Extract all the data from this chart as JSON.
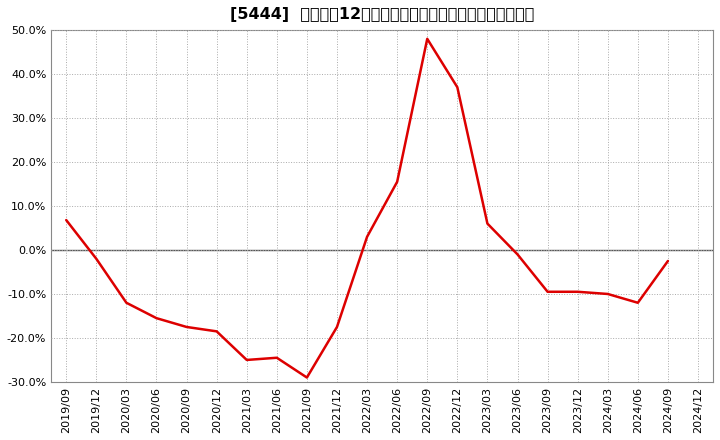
{
  "title": "[5444]  売上高の12か月移動合計の対前年同期増減率の推移",
  "line_color": "#dd0000",
  "background_color": "#ffffff",
  "grid_color": "#aaaaaa",
  "zero_line_color": "#555555",
  "ylim": [
    -0.3,
    0.5
  ],
  "yticks": [
    -0.3,
    -0.2,
    -0.1,
    0.0,
    0.1,
    0.2,
    0.3,
    0.4,
    0.5
  ],
  "dates": [
    "2019/09",
    "2019/12",
    "2020/03",
    "2020/06",
    "2020/09",
    "2020/12",
    "2021/03",
    "2021/06",
    "2021/09",
    "2021/12",
    "2022/03",
    "2022/06",
    "2022/09",
    "2022/12",
    "2023/03",
    "2023/06",
    "2023/09",
    "2023/12",
    "2024/03",
    "2024/06",
    "2024/09",
    "2024/12"
  ],
  "values": [
    0.068,
    -0.02,
    -0.12,
    -0.155,
    -0.175,
    -0.185,
    -0.25,
    -0.245,
    -0.29,
    -0.175,
    0.03,
    0.155,
    0.48,
    0.37,
    0.06,
    -0.01,
    -0.095,
    -0.095,
    -0.1,
    -0.12,
    -0.025,
    null
  ],
  "title_fontsize": 11.5,
  "tick_fontsize": 8.0
}
